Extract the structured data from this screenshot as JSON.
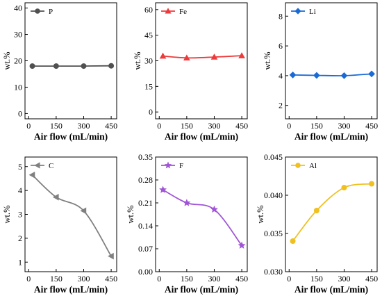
{
  "chart_data": [
    {
      "type": "line",
      "x": [
        20,
        150,
        300,
        450
      ],
      "series": [
        {
          "name": "P",
          "values": [
            18.0,
            18.0,
            18.0,
            18.1
          ],
          "color": "#505050",
          "marker": "circle"
        }
      ],
      "xlabel": "Air flow (mL/min)",
      "ylabel": "wt.%",
      "xlim": [
        -20,
        480
      ],
      "ylim": [
        -2,
        42
      ],
      "xticks": [
        0,
        150,
        300,
        450
      ],
      "yticks": [
        0,
        10,
        20,
        30,
        40
      ],
      "curve": "straight",
      "legend": "top-left",
      "grid": false
    },
    {
      "type": "line",
      "x": [
        20,
        150,
        300,
        450
      ],
      "series": [
        {
          "name": "Fe",
          "values": [
            32.8,
            31.7,
            32.2,
            33.0
          ],
          "color": "#ee3a3a",
          "marker": "triangle-up"
        }
      ],
      "xlabel": "Air flow (mL/min)",
      "ylabel": "wt.%",
      "xlim": [
        -20,
        480
      ],
      "ylim": [
        -4,
        64
      ],
      "xticks": [
        0,
        150,
        300,
        450
      ],
      "yticks": [
        0,
        15,
        30,
        45,
        60
      ],
      "curve": "smooth",
      "legend": "top-left",
      "grid": false
    },
    {
      "type": "line",
      "x": [
        20,
        150,
        300,
        450
      ],
      "series": [
        {
          "name": "Li",
          "values": [
            4.05,
            4.02,
            4.0,
            4.12
          ],
          "color": "#1a6ad6",
          "marker": "diamond"
        }
      ],
      "xlabel": "Air flow (mL/min)",
      "ylabel": "wt.%",
      "xlim": [
        -20,
        480
      ],
      "ylim": [
        1.1,
        8.9
      ],
      "xticks": [
        0,
        150,
        300,
        450
      ],
      "yticks": [
        2,
        4,
        6,
        8
      ],
      "curve": "smooth",
      "legend": "top-left",
      "grid": false
    },
    {
      "type": "line",
      "x": [
        20,
        150,
        300,
        450
      ],
      "series": [
        {
          "name": "C",
          "values": [
            4.65,
            3.72,
            3.15,
            1.25
          ],
          "color": "#808080",
          "marker": "triangle-left"
        }
      ],
      "xlabel": "Air flow (mL/min)",
      "ylabel": "wt.%",
      "xlim": [
        -20,
        480
      ],
      "ylim": [
        0.6,
        5.4
      ],
      "xticks": [
        0,
        150,
        300,
        450
      ],
      "yticks": [
        1,
        2,
        3,
        4,
        5
      ],
      "curve": "smooth",
      "legend": "top-left",
      "grid": false
    },
    {
      "type": "line",
      "x": [
        20,
        150,
        300,
        450
      ],
      "series": [
        {
          "name": "F",
          "values": [
            0.25,
            0.21,
            0.19,
            0.08
          ],
          "color": "#a055d6",
          "marker": "star"
        }
      ],
      "xlabel": "Air flow (mL/min)",
      "ylabel": "wt.%",
      "xlim": [
        -20,
        480
      ],
      "ylim": [
        0,
        0.35
      ],
      "xticks": [
        0,
        150,
        300,
        450
      ],
      "yticks": [
        0.0,
        0.07,
        0.14,
        0.21,
        0.28,
        0.35
      ],
      "ytick_labels": [
        "0.00",
        "0.07",
        "0.14",
        "0.21",
        "0.28",
        "0.35"
      ],
      "curve": "smooth",
      "legend": "top-left",
      "grid": false
    },
    {
      "type": "line",
      "x": [
        20,
        150,
        300,
        450
      ],
      "series": [
        {
          "name": "Al",
          "values": [
            0.034,
            0.038,
            0.041,
            0.0415
          ],
          "color": "#f0c020",
          "marker": "circle"
        }
      ],
      "xlabel": "Air flow (mL/min)",
      "ylabel": "wt.%",
      "xlim": [
        -20,
        480
      ],
      "ylim": [
        0.03,
        0.045
      ],
      "xticks": [
        0,
        150,
        300,
        450
      ],
      "yticks": [
        0.03,
        0.035,
        0.04,
        0.045
      ],
      "ytick_labels": [
        "0.030",
        "0.035",
        "0.040",
        "0.045"
      ],
      "curve": "smooth",
      "legend": "top-left",
      "grid": false
    }
  ]
}
